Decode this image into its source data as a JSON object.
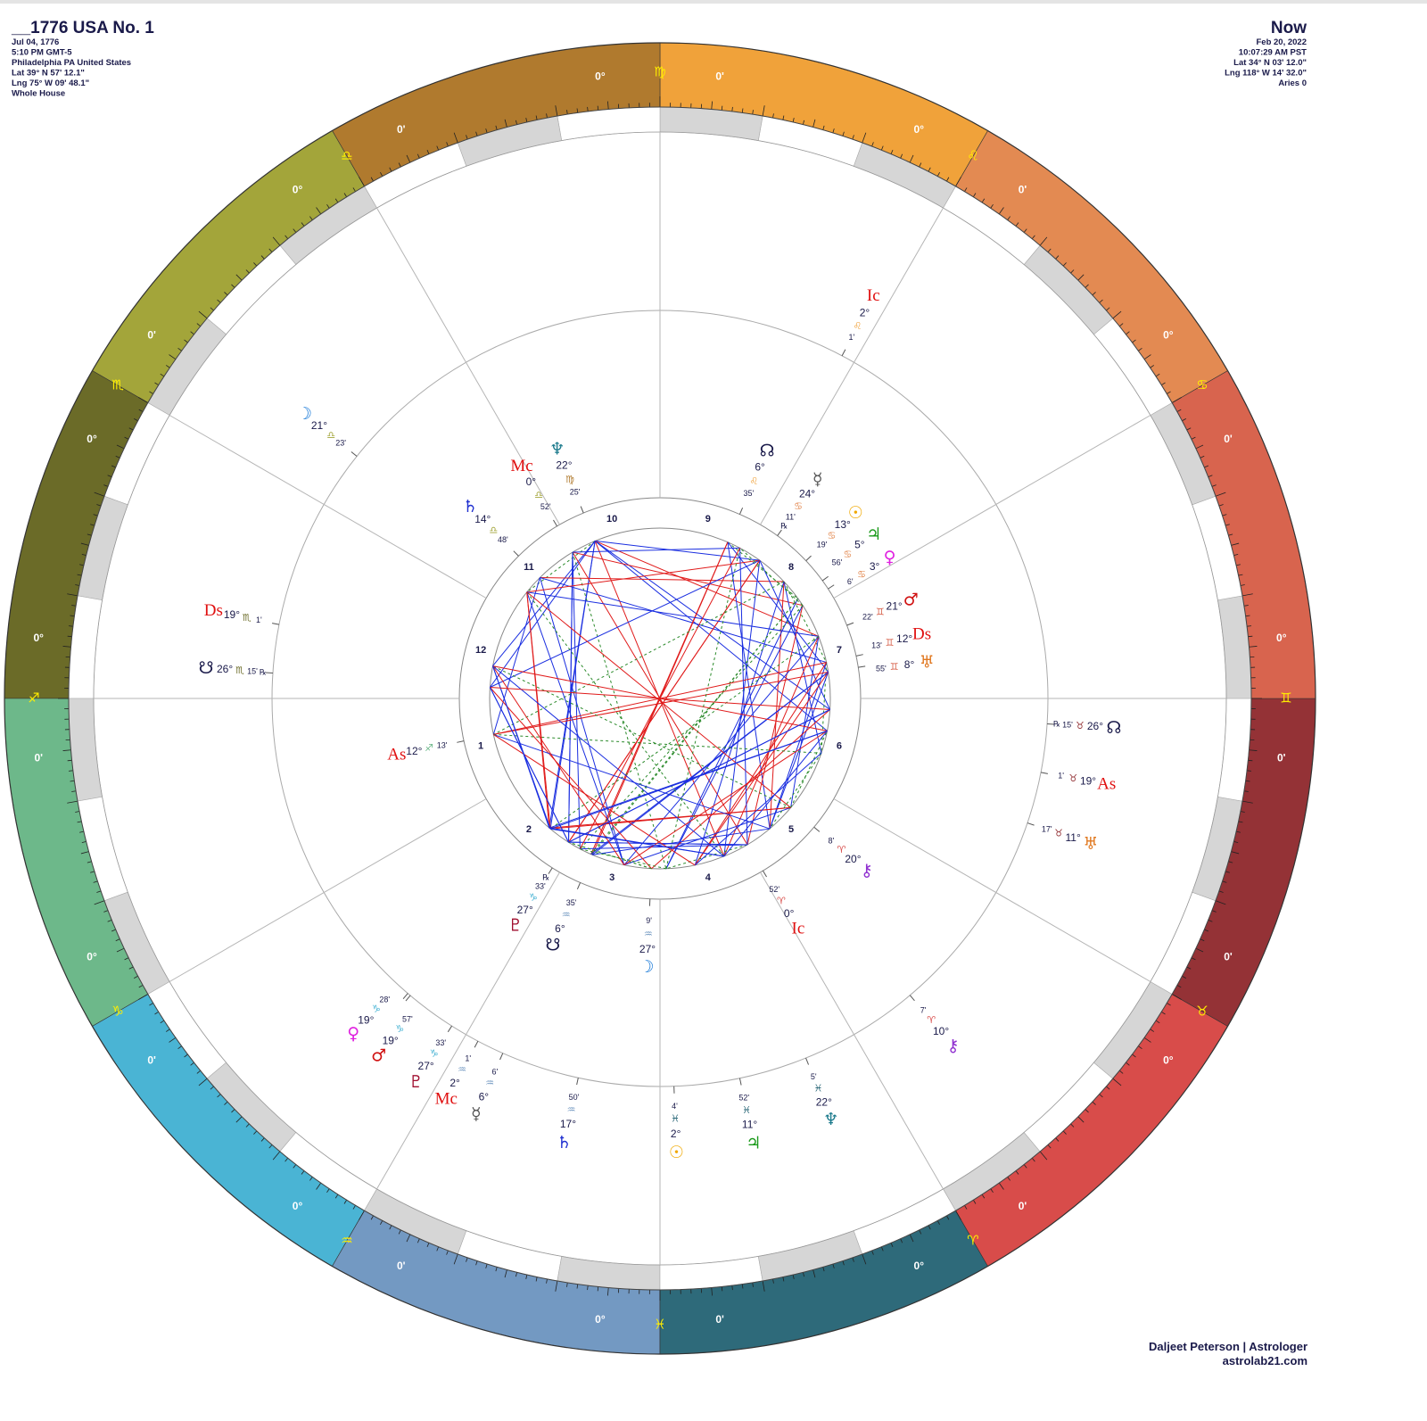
{
  "header": {
    "title": "__1776 USA No. 1",
    "lines": [
      "Jul 04, 1776",
      "5:10 PM GMT-5",
      "Philadelphia PA United States",
      "Lat 39° N 57' 12.1\"",
      "Lng 75° W 09' 48.1\"",
      "Whole House"
    ]
  },
  "now": {
    "title": "Now",
    "lines": [
      "Feb 20, 2022",
      "10:07:29 AM PST",
      "Lat 34° N 03' 12.0\"",
      "Lng 118° W 14' 32.0\"",
      "Aries 0"
    ]
  },
  "footer": {
    "name": "Daljeet Peterson | Astrologer",
    "site": "astrolab21.com"
  },
  "chart_data": {
    "type": "wheel",
    "signs": [
      {
        "glyph": "♈",
        "color": "#d84c4a",
        "deg": {
          "value": 0,
          "label": "0°"
        },
        "min": {
          "value": 0,
          "label": "0'"
        }
      },
      {
        "glyph": "♉",
        "color": "#943236",
        "deg": {
          "value": 0,
          "label": "0°"
        },
        "min": {
          "value": 0,
          "label": "0'"
        }
      },
      {
        "glyph": "♊",
        "color": "#d8644e",
        "deg": {
          "value": 0,
          "label": "0°"
        },
        "min": {
          "value": 0,
          "label": "0'"
        }
      },
      {
        "glyph": "♋",
        "color": "#e38a52",
        "deg": {
          "value": 0,
          "label": "0°"
        },
        "min": {
          "value": 0,
          "label": "0'"
        }
      },
      {
        "glyph": "♌",
        "color": "#f0a23a",
        "deg": {
          "value": 0,
          "label": "0°"
        },
        "min": {
          "value": 0,
          "label": "0'"
        }
      },
      {
        "glyph": "♍",
        "color": "#b07a2e",
        "deg": {
          "value": 0,
          "label": "0°"
        },
        "min": {
          "value": 0,
          "label": "0'"
        }
      },
      {
        "glyph": "♎",
        "color": "#a3a53a",
        "deg": {
          "value": 0,
          "label": "0°"
        },
        "min": {
          "value": 0,
          "label": "0'"
        }
      },
      {
        "glyph": "♏",
        "color": "#6b6b28",
        "deg": {
          "value": 0,
          "label": "0°"
        },
        "min": {
          "value": 0,
          "label": "0'"
        }
      },
      {
        "glyph": "♐",
        "color": "#6db88a",
        "deg": {
          "value": 0,
          "label": "0°"
        },
        "min": {
          "value": 0,
          "label": "0'"
        }
      },
      {
        "glyph": "♑",
        "color": "#4ab4d4",
        "deg": {
          "value": 0,
          "label": "0°"
        },
        "min": {
          "value": 0,
          "label": "0'"
        }
      },
      {
        "glyph": "♒",
        "color": "#7399c2",
        "deg": {
          "value": 0,
          "label": "0°"
        },
        "min": {
          "value": 0,
          "label": "0'"
        }
      },
      {
        "glyph": "♓",
        "color": "#2e6a7a",
        "deg": {
          "value": 0,
          "label": "0°"
        },
        "min": {
          "value": 0,
          "label": "0'"
        }
      }
    ],
    "houses": [
      1,
      2,
      3,
      4,
      5,
      6,
      7,
      8,
      9,
      10,
      11,
      12
    ],
    "natal": [
      {
        "glyph": "♆",
        "color": "#1b7a8c",
        "deg": {
          "value": 22,
          "label": "22°"
        },
        "sign": "♍",
        "min": {
          "value": 25,
          "label": "25'"
        }
      },
      {
        "glyph": "Mc",
        "color": "#e01010",
        "deg": {
          "value": 0,
          "label": "0°"
        },
        "sign": "♎",
        "min": {
          "value": 52,
          "label": "52'"
        }
      },
      {
        "glyph": "♄",
        "color": "#2030d0",
        "deg": {
          "value": 14,
          "label": "14°"
        },
        "sign": "♎",
        "min": {
          "value": 48,
          "label": "48'"
        }
      },
      {
        "glyph": "☊",
        "color": "#1a1a4a",
        "deg": {
          "value": 6,
          "label": "6°"
        },
        "sign": "♌",
        "min": {
          "value": 35,
          "label": "35'"
        }
      },
      {
        "glyph": "☿",
        "color": "#555555",
        "deg": {
          "value": 24,
          "label": "24°"
        },
        "sign": "♋",
        "min": {
          "value": 11,
          "label": "11'"
        },
        "rx": "℞"
      },
      {
        "glyph": "☉",
        "color": "#f0a800",
        "deg": {
          "value": 13,
          "label": "13°"
        },
        "sign": "♋",
        "min": {
          "value": 19,
          "label": "19'"
        }
      },
      {
        "glyph": "♃",
        "color": "#1a9a1a",
        "deg": {
          "value": 5,
          "label": "5°"
        },
        "sign": "♋",
        "min": {
          "value": 56,
          "label": "56'"
        }
      },
      {
        "glyph": "♀",
        "color": "#e020e0",
        "deg": {
          "value": 3,
          "label": "3°"
        },
        "sign": "♋",
        "min": {
          "value": 6,
          "label": "6'"
        }
      },
      {
        "glyph": "♂",
        "color": "#d01010",
        "deg": {
          "value": 21,
          "label": "21°"
        },
        "sign": "♊",
        "min": {
          "value": 22,
          "label": "22'"
        }
      },
      {
        "glyph": "Ds",
        "color": "#e01010",
        "deg": {
          "value": 12,
          "label": "12°"
        },
        "sign": "♊",
        "min": {
          "value": 13,
          "label": "13'"
        }
      },
      {
        "glyph": "♅",
        "color": "#e07820",
        "deg": {
          "value": 8,
          "label": "8°"
        },
        "sign": "♊",
        "min": {
          "value": 55,
          "label": "55'"
        }
      },
      {
        "glyph": "⚷",
        "color": "#9030d0",
        "deg": {
          "value": 20,
          "label": "20°"
        },
        "sign": "♈",
        "min": {
          "value": 8,
          "label": "8'"
        }
      },
      {
        "glyph": "Ic",
        "color": "#e01010",
        "deg": {
          "value": 0,
          "label": "0°"
        },
        "sign": "♈",
        "min": {
          "value": 52,
          "label": "52'"
        }
      },
      {
        "glyph": "☽",
        "color": "#1a7ad8",
        "deg": {
          "value": 27,
          "label": "27°"
        },
        "sign": "♒",
        "min": {
          "value": 9,
          "label": "9'"
        }
      },
      {
        "glyph": "☋",
        "color": "#1a1a4a",
        "deg": {
          "value": 6,
          "label": "6°"
        },
        "sign": "♒",
        "min": {
          "value": 35,
          "label": "35'"
        }
      },
      {
        "glyph": "♇",
        "color": "#a01030",
        "deg": {
          "value": 27,
          "label": "27°"
        },
        "sign": "♑",
        "min": {
          "value": 33,
          "label": "33'"
        },
        "rx": "℞"
      },
      {
        "glyph": "As",
        "color": "#e01010",
        "deg": {
          "value": 12,
          "label": "12°"
        },
        "sign": "♐",
        "min": {
          "value": 13,
          "label": "13'"
        }
      }
    ],
    "transit": [
      {
        "glyph": "☽",
        "color": "#1a7ad8",
        "deg": {
          "value": 21,
          "label": "21°"
        },
        "sign": "♎",
        "min": {
          "value": 23,
          "label": "23'"
        }
      },
      {
        "glyph": "Ds",
        "color": "#e01010",
        "deg": {
          "value": 19,
          "label": "19°"
        },
        "sign": "♏",
        "min": {
          "value": 1,
          "label": "1'"
        }
      },
      {
        "glyph": "☋",
        "color": "#1a1a4a",
        "deg": {
          "value": 26,
          "label": "26°"
        },
        "sign": "♏",
        "min": {
          "value": 15,
          "label": "15'"
        },
        "rx": "℞"
      },
      {
        "glyph": "Ic",
        "color": "#e01010",
        "deg": {
          "value": 2,
          "label": "2°"
        },
        "sign": "♌",
        "min": {
          "value": 1,
          "label": "1'"
        }
      },
      {
        "glyph": "☊",
        "color": "#1a1a4a",
        "deg": {
          "value": 26,
          "label": "26°"
        },
        "sign": "♉",
        "min": {
          "value": 15,
          "label": "15'"
        },
        "rx": "℞"
      },
      {
        "glyph": "As",
        "color": "#e01010",
        "deg": {
          "value": 19,
          "label": "19°"
        },
        "sign": "♉",
        "min": {
          "value": 1,
          "label": "1'"
        }
      },
      {
        "glyph": "♅",
        "color": "#e07820",
        "deg": {
          "value": 11,
          "label": "11°"
        },
        "sign": "♉",
        "min": {
          "value": 17,
          "label": "17'"
        }
      },
      {
        "glyph": "⚷",
        "color": "#9030d0",
        "deg": {
          "value": 10,
          "label": "10°"
        },
        "sign": "♈",
        "min": {
          "value": 7,
          "label": "7'"
        }
      },
      {
        "glyph": "♆",
        "color": "#1b7a8c",
        "deg": {
          "value": 22,
          "label": "22°"
        },
        "sign": "♓",
        "min": {
          "value": 5,
          "label": "5'"
        }
      },
      {
        "glyph": "♃",
        "color": "#1a9a1a",
        "deg": {
          "value": 11,
          "label": "11°"
        },
        "sign": "♓",
        "min": {
          "value": 52,
          "label": "52'"
        }
      },
      {
        "glyph": "☉",
        "color": "#f0a800",
        "deg": {
          "value": 2,
          "label": "2°"
        },
        "sign": "♓",
        "min": {
          "value": 4,
          "label": "4'"
        }
      },
      {
        "glyph": "♄",
        "color": "#2030d0",
        "deg": {
          "value": 17,
          "label": "17°"
        },
        "sign": "♒",
        "min": {
          "value": 50,
          "label": "50'"
        }
      },
      {
        "glyph": "☿",
        "color": "#555555",
        "deg": {
          "value": 6,
          "label": "6°"
        },
        "sign": "♒",
        "min": {
          "value": 6,
          "label": "6'"
        }
      },
      {
        "glyph": "Mc",
        "color": "#e01010",
        "deg": {
          "value": 2,
          "label": "2°"
        },
        "sign": "♒",
        "min": {
          "value": 1,
          "label": "1'"
        }
      },
      {
        "glyph": "♇",
        "color": "#a01030",
        "deg": {
          "value": 27,
          "label": "27°"
        },
        "sign": "♑",
        "min": {
          "value": 33,
          "label": "33'"
        }
      },
      {
        "glyph": "♂",
        "color": "#d01010",
        "deg": {
          "value": 19,
          "label": "19°"
        },
        "sign": "♑",
        "min": {
          "value": 57,
          "label": "57'"
        }
      },
      {
        "glyph": "♀",
        "color": "#e020e0",
        "deg": {
          "value": 19,
          "label": "19°"
        },
        "sign": "♑",
        "min": {
          "value": 28,
          "label": "28'"
        }
      }
    ]
  }
}
